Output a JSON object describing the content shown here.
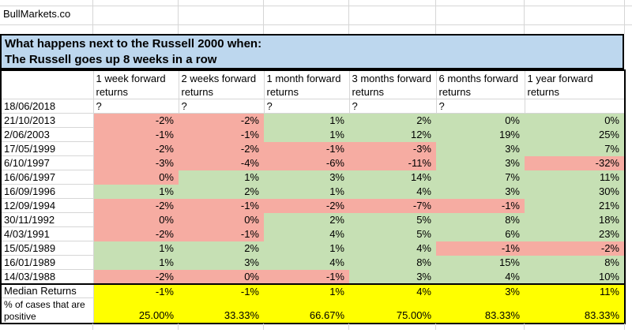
{
  "brand": "BullMarkets.co",
  "title": {
    "line1": "What happens next to the Russell 2000 when:",
    "line2": "The Russell goes up 8 weeks in a row"
  },
  "colors": {
    "positive_fill": "#c6e0b4",
    "negative_fill": "#f6aca2",
    "title_fill": "#bdd7ee",
    "summary_fill": "#ffff00",
    "gridline": "#d6d6d6"
  },
  "table": {
    "columns": [
      "1 week forward returns",
      "2 weeks forward returns",
      "1 month forward returns",
      "3 months forward returns",
      "6 months forward returns",
      "1 year forward returns"
    ],
    "rows": [
      {
        "date": "18/06/2018",
        "cells": [
          {
            "v": "?",
            "c": "none"
          },
          {
            "v": "?",
            "c": "none"
          },
          {
            "v": "?",
            "c": "none"
          },
          {
            "v": "?",
            "c": "none"
          },
          {
            "v": "?",
            "c": "none"
          },
          {
            "v": "",
            "c": "none"
          }
        ]
      },
      {
        "date": "21/10/2013",
        "cells": [
          {
            "v": "-2%",
            "c": "neg"
          },
          {
            "v": "-2%",
            "c": "neg"
          },
          {
            "v": "1%",
            "c": "pos"
          },
          {
            "v": "2%",
            "c": "pos"
          },
          {
            "v": "0%",
            "c": "pos"
          },
          {
            "v": "0%",
            "c": "pos"
          }
        ]
      },
      {
        "date": "2/06/2003",
        "cells": [
          {
            "v": "-1%",
            "c": "neg"
          },
          {
            "v": "-1%",
            "c": "neg"
          },
          {
            "v": "1%",
            "c": "pos"
          },
          {
            "v": "12%",
            "c": "pos"
          },
          {
            "v": "19%",
            "c": "pos"
          },
          {
            "v": "25%",
            "c": "pos"
          }
        ]
      },
      {
        "date": "17/05/1999",
        "cells": [
          {
            "v": "-2%",
            "c": "neg"
          },
          {
            "v": "-2%",
            "c": "neg"
          },
          {
            "v": "-1%",
            "c": "neg"
          },
          {
            "v": "-3%",
            "c": "neg"
          },
          {
            "v": "3%",
            "c": "pos"
          },
          {
            "v": "7%",
            "c": "pos"
          }
        ]
      },
      {
        "date": "6/10/1997",
        "cells": [
          {
            "v": "-3%",
            "c": "neg"
          },
          {
            "v": "-4%",
            "c": "neg"
          },
          {
            "v": "-6%",
            "c": "neg"
          },
          {
            "v": "-11%",
            "c": "neg"
          },
          {
            "v": "3%",
            "c": "pos"
          },
          {
            "v": "-32%",
            "c": "neg"
          }
        ]
      },
      {
        "date": "16/06/1997",
        "cells": [
          {
            "v": "0%",
            "c": "neg"
          },
          {
            "v": "1%",
            "c": "pos"
          },
          {
            "v": "3%",
            "c": "pos"
          },
          {
            "v": "14%",
            "c": "pos"
          },
          {
            "v": "7%",
            "c": "pos"
          },
          {
            "v": "11%",
            "c": "pos"
          }
        ]
      },
      {
        "date": "16/09/1996",
        "cells": [
          {
            "v": "1%",
            "c": "pos"
          },
          {
            "v": "2%",
            "c": "pos"
          },
          {
            "v": "1%",
            "c": "pos"
          },
          {
            "v": "4%",
            "c": "pos"
          },
          {
            "v": "3%",
            "c": "pos"
          },
          {
            "v": "30%",
            "c": "pos"
          }
        ]
      },
      {
        "date": "12/09/1994",
        "cells": [
          {
            "v": "-2%",
            "c": "neg"
          },
          {
            "v": "-1%",
            "c": "neg"
          },
          {
            "v": "-2%",
            "c": "neg"
          },
          {
            "v": "-7%",
            "c": "neg"
          },
          {
            "v": "-1%",
            "c": "neg"
          },
          {
            "v": "21%",
            "c": "pos"
          }
        ]
      },
      {
        "date": "30/11/1992",
        "cells": [
          {
            "v": "0%",
            "c": "neg"
          },
          {
            "v": "0%",
            "c": "neg"
          },
          {
            "v": "2%",
            "c": "pos"
          },
          {
            "v": "5%",
            "c": "pos"
          },
          {
            "v": "8%",
            "c": "pos"
          },
          {
            "v": "18%",
            "c": "pos"
          }
        ]
      },
      {
        "date": "4/03/1991",
        "cells": [
          {
            "v": "-2%",
            "c": "neg"
          },
          {
            "v": "-1%",
            "c": "neg"
          },
          {
            "v": "4%",
            "c": "pos"
          },
          {
            "v": "5%",
            "c": "pos"
          },
          {
            "v": "6%",
            "c": "pos"
          },
          {
            "v": "23%",
            "c": "pos"
          }
        ]
      },
      {
        "date": "15/05/1989",
        "cells": [
          {
            "v": "1%",
            "c": "pos"
          },
          {
            "v": "2%",
            "c": "pos"
          },
          {
            "v": "1%",
            "c": "pos"
          },
          {
            "v": "4%",
            "c": "pos"
          },
          {
            "v": "-1%",
            "c": "neg"
          },
          {
            "v": "-2%",
            "c": "neg"
          }
        ]
      },
      {
        "date": "16/01/1989",
        "cells": [
          {
            "v": "1%",
            "c": "pos"
          },
          {
            "v": "3%",
            "c": "pos"
          },
          {
            "v": "4%",
            "c": "pos"
          },
          {
            "v": "8%",
            "c": "pos"
          },
          {
            "v": "15%",
            "c": "pos"
          },
          {
            "v": "8%",
            "c": "pos"
          }
        ]
      },
      {
        "date": "14/03/1988",
        "cells": [
          {
            "v": "-2%",
            "c": "neg"
          },
          {
            "v": "0%",
            "c": "neg"
          },
          {
            "v": "-1%",
            "c": "neg"
          },
          {
            "v": "3%",
            "c": "pos"
          },
          {
            "v": "4%",
            "c": "pos"
          },
          {
            "v": "10%",
            "c": "pos"
          }
        ]
      }
    ],
    "summary": {
      "median_label": "Median Returns",
      "median_values": [
        "-1%",
        "-1%",
        "1%",
        "4%",
        "3%",
        "11%"
      ],
      "positive_label": "% of cases that are positive",
      "positive_values": [
        "25.00%",
        "33.33%",
        "66.67%",
        "75.00%",
        "83.33%",
        "83.33%"
      ]
    }
  }
}
